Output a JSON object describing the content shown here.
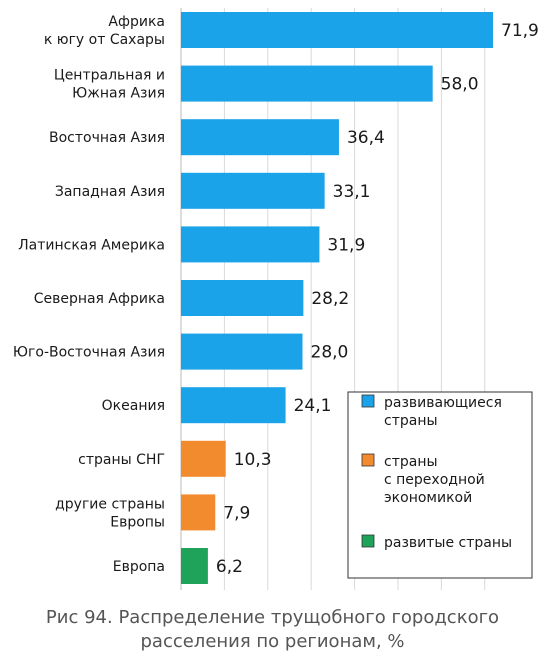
{
  "chart_data": {
    "type": "bar",
    "orientation": "horizontal",
    "categories": [
      [
        "Африка",
        "к югу от Сахары"
      ],
      [
        "Центральная и",
        "Южная Азия"
      ],
      [
        "Восточная Азия"
      ],
      [
        "Западная Азия"
      ],
      [
        "Латинская Америка"
      ],
      [
        "Северная Африка"
      ],
      [
        "Юго-Восточная Азия"
      ],
      [
        "Океания"
      ],
      [
        "страны СНГ"
      ],
      [
        "другие страны",
        "Европы"
      ],
      [
        "Европа"
      ]
    ],
    "values": [
      71.9,
      58.0,
      36.4,
      33.1,
      31.9,
      28.2,
      28.0,
      24.1,
      10.3,
      7.9,
      6.2
    ],
    "value_labels": [
      "71,9",
      "58,0",
      "36,4",
      "33,1",
      "31,9",
      "28,2",
      "28,0",
      "24,1",
      "10,3",
      "7,9",
      "6,2"
    ],
    "groups": [
      "developing",
      "developing",
      "developing",
      "developing",
      "developing",
      "developing",
      "developing",
      "developing",
      "transition",
      "transition",
      "developed"
    ],
    "xlim": [
      0,
      75
    ],
    "grid": "vertical",
    "legend": {
      "placement": "bottom-right",
      "entries": [
        {
          "key": "developing",
          "lines": [
            "развивающиеся",
            "страны"
          ],
          "color": "#1aa3e8"
        },
        {
          "key": "transition",
          "lines": [
            "страны",
            "с переходной",
            "экономикой"
          ],
          "color": "#f28a2e"
        },
        {
          "key": "developed",
          "lines": [
            "развитые страны"
          ],
          "color": "#1fa35a"
        }
      ]
    }
  },
  "caption": {
    "line1": "Рис 94. Распределение трущобного городского",
    "line2": "расселения по регионам, %"
  }
}
